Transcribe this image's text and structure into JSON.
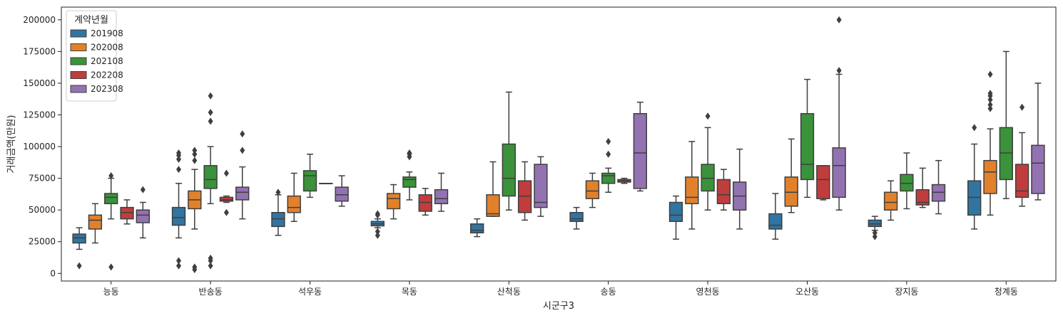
{
  "chart_data": {
    "type": "box",
    "xlabel": "시군구3",
    "ylabel": "거래금액(만원)",
    "ylim": [
      -6000,
      210000
    ],
    "yticks": [
      0,
      25000,
      50000,
      75000,
      100000,
      125000,
      150000,
      175000,
      200000
    ],
    "categories": [
      "능동",
      "반송동",
      "석우동",
      "목동",
      "산척동",
      "송동",
      "영천동",
      "오산동",
      "장지동",
      "청계동"
    ],
    "legend": {
      "title": "계약년월",
      "position": "top-left"
    },
    "series": [
      {
        "name": "201908",
        "color": "#3274a1",
        "boxes": [
          {
            "min": 19000,
            "q1": 24000,
            "median": 28000,
            "q3": 31000,
            "max": 36000,
            "outliers": [
              6000
            ]
          },
          {
            "min": 28000,
            "q1": 38000,
            "median": 44000,
            "q3": 52000,
            "max": 71000,
            "outliers": [
              82000,
              90000,
              93000,
              95000,
              10000,
              6000
            ]
          },
          {
            "min": 30000,
            "q1": 37000,
            "median": 43000,
            "q3": 48000,
            "max": 62000,
            "outliers": [
              64000
            ]
          },
          {
            "min": 36000,
            "q1": 37500,
            "median": 39000,
            "q3": 41000,
            "max": 43000,
            "outliers": [
              46000,
              47000,
              33000,
              30000
            ]
          },
          {
            "min": 29000,
            "q1": 32000,
            "median": 34000,
            "q3": 39000,
            "max": 43000,
            "outliers": []
          },
          {
            "min": 35000,
            "q1": 41000,
            "median": 43000,
            "q3": 48000,
            "max": 52000,
            "outliers": []
          },
          {
            "min": 27000,
            "q1": 41000,
            "median": 46000,
            "q3": 56000,
            "max": 61000,
            "outliers": []
          },
          {
            "min": 27000,
            "q1": 35000,
            "median": 38000,
            "q3": 47000,
            "max": 63000,
            "outliers": []
          },
          {
            "min": 34000,
            "q1": 37000,
            "median": 39000,
            "q3": 42000,
            "max": 45000,
            "outliers": [
              32000,
              29000
            ]
          },
          {
            "min": 35000,
            "q1": 46000,
            "median": 60000,
            "q3": 73000,
            "max": 102000,
            "outliers": [
              115000
            ]
          }
        ]
      },
      {
        "name": "202008",
        "color": "#e1812c",
        "boxes": [
          {
            "min": 24000,
            "q1": 35000,
            "median": 42000,
            "q3": 46000,
            "max": 55000,
            "outliers": []
          },
          {
            "min": 35000,
            "q1": 51000,
            "median": 58000,
            "q3": 65000,
            "max": 82000,
            "outliers": [
              89000,
              94000,
              97000,
              5000,
              3000
            ]
          },
          {
            "min": 41000,
            "q1": 48000,
            "median": 52000,
            "q3": 61000,
            "max": 79000,
            "outliers": []
          },
          {
            "min": 43000,
            "q1": 51000,
            "median": 59000,
            "q3": 63000,
            "max": 70000,
            "outliers": []
          },
          {
            "min": 45000,
            "q1": 45000,
            "median": 47000,
            "q3": 62000,
            "max": 88000,
            "outliers": []
          },
          {
            "min": 52000,
            "q1": 59000,
            "median": 65000,
            "q3": 73000,
            "max": 79000,
            "outliers": []
          },
          {
            "min": 35000,
            "q1": 55000,
            "median": 60000,
            "q3": 76000,
            "max": 104000,
            "outliers": []
          },
          {
            "min": 48000,
            "q1": 53000,
            "median": 64000,
            "q3": 76000,
            "max": 106000,
            "outliers": []
          },
          {
            "min": 42000,
            "q1": 50000,
            "median": 56000,
            "q3": 64000,
            "max": 73000,
            "outliers": []
          },
          {
            "min": 46000,
            "q1": 63000,
            "median": 80000,
            "q3": 89000,
            "max": 114000,
            "outliers": [
              130000,
              133000,
              137000,
              140000,
              142000,
              157000
            ]
          }
        ]
      },
      {
        "name": "202108",
        "color": "#3a923a",
        "boxes": [
          {
            "min": 43000,
            "q1": 55000,
            "median": 60000,
            "q3": 63000,
            "max": 75000,
            "outliers": [
              77000,
              5000
            ]
          },
          {
            "min": 55000,
            "q1": 67000,
            "median": 74000,
            "q3": 85000,
            "max": 100000,
            "outliers": [
              120000,
              127000,
              140000,
              12000,
              10000,
              6000
            ]
          },
          {
            "min": 60000,
            "q1": 65000,
            "median": 77000,
            "q3": 81000,
            "max": 94000,
            "outliers": []
          },
          {
            "min": 58000,
            "q1": 68000,
            "median": 74000,
            "q3": 76000,
            "max": 80000,
            "outliers": [
              92000,
              94000,
              95000
            ]
          },
          {
            "min": 50000,
            "q1": 61000,
            "median": 75000,
            "q3": 102000,
            "max": 143000,
            "outliers": []
          },
          {
            "min": 64000,
            "q1": 71000,
            "median": 77000,
            "q3": 79000,
            "max": 83000,
            "outliers": [
              94000,
              104000
            ]
          },
          {
            "min": 50000,
            "q1": 65000,
            "median": 75000,
            "q3": 86000,
            "max": 115000,
            "outliers": [
              124000
            ]
          },
          {
            "min": 60000,
            "q1": 74000,
            "median": 86000,
            "q3": 126000,
            "max": 153000,
            "outliers": []
          },
          {
            "min": 51000,
            "q1": 65000,
            "median": 71000,
            "q3": 78000,
            "max": 95000,
            "outliers": []
          },
          {
            "min": 59000,
            "q1": 74000,
            "median": 95000,
            "q3": 115000,
            "max": 175000,
            "outliers": []
          }
        ]
      },
      {
        "name": "202208",
        "color": "#c03d3e",
        "boxes": [
          {
            "min": 39000,
            "q1": 43000,
            "median": 48000,
            "q3": 52000,
            "max": 58000,
            "outliers": []
          },
          {
            "min": 56000,
            "q1": 57000,
            "median": 58000,
            "q3": 60000,
            "max": 61000,
            "outliers": [
              79000,
              48000
            ]
          },
          {
            "min": 71000,
            "q1": 71000,
            "median": 71000,
            "q3": 71000,
            "max": 71000,
            "outliers": []
          },
          {
            "min": 46000,
            "q1": 49000,
            "median": 56000,
            "q3": 62000,
            "max": 67000,
            "outliers": []
          },
          {
            "min": 42000,
            "q1": 48000,
            "median": 61000,
            "q3": 73000,
            "max": 88000,
            "outliers": []
          },
          {
            "min": 71000,
            "q1": 72000,
            "median": 73000,
            "q3": 74000,
            "max": 75000,
            "outliers": []
          },
          {
            "min": 50000,
            "q1": 55000,
            "median": 62000,
            "q3": 74000,
            "max": 82000,
            "outliers": []
          },
          {
            "min": 58000,
            "q1": 59000,
            "median": 74000,
            "q3": 85000,
            "max": 85000,
            "outliers": []
          },
          {
            "min": 52000,
            "q1": 54000,
            "median": 56000,
            "q3": 66000,
            "max": 83000,
            "outliers": []
          },
          {
            "min": 53000,
            "q1": 60000,
            "median": 65000,
            "q3": 86000,
            "max": 111000,
            "outliers": [
              131000
            ]
          }
        ]
      },
      {
        "name": "202308",
        "color": "#9372b2",
        "boxes": [
          {
            "min": 28000,
            "q1": 40000,
            "median": 46000,
            "q3": 50000,
            "max": 56000,
            "outliers": [
              66000
            ]
          },
          {
            "min": 43000,
            "q1": 58000,
            "median": 64000,
            "q3": 68000,
            "max": 84000,
            "outliers": [
              97000,
              110000
            ]
          },
          {
            "min": 53000,
            "q1": 57000,
            "median": 62000,
            "q3": 68000,
            "max": 77000,
            "outliers": []
          },
          {
            "min": 49000,
            "q1": 55000,
            "median": 59000,
            "q3": 66000,
            "max": 79000,
            "outliers": []
          },
          {
            "min": 45000,
            "q1": 52000,
            "median": 56000,
            "q3": 86000,
            "max": 92000,
            "outliers": []
          },
          {
            "min": 65000,
            "q1": 67000,
            "median": 95000,
            "q3": 126000,
            "max": 135000,
            "outliers": []
          },
          {
            "min": 35000,
            "q1": 50000,
            "median": 61000,
            "q3": 72000,
            "max": 98000,
            "outliers": []
          },
          {
            "min": 50000,
            "q1": 60000,
            "median": 85000,
            "q3": 99000,
            "max": 157000,
            "outliers": [
              160000,
              200000
            ]
          },
          {
            "min": 47000,
            "q1": 57000,
            "median": 64000,
            "q3": 70000,
            "max": 89000,
            "outliers": []
          },
          {
            "min": 58000,
            "q1": 63000,
            "median": 87000,
            "q3": 101000,
            "max": 150000,
            "outliers": []
          }
        ]
      }
    ]
  }
}
